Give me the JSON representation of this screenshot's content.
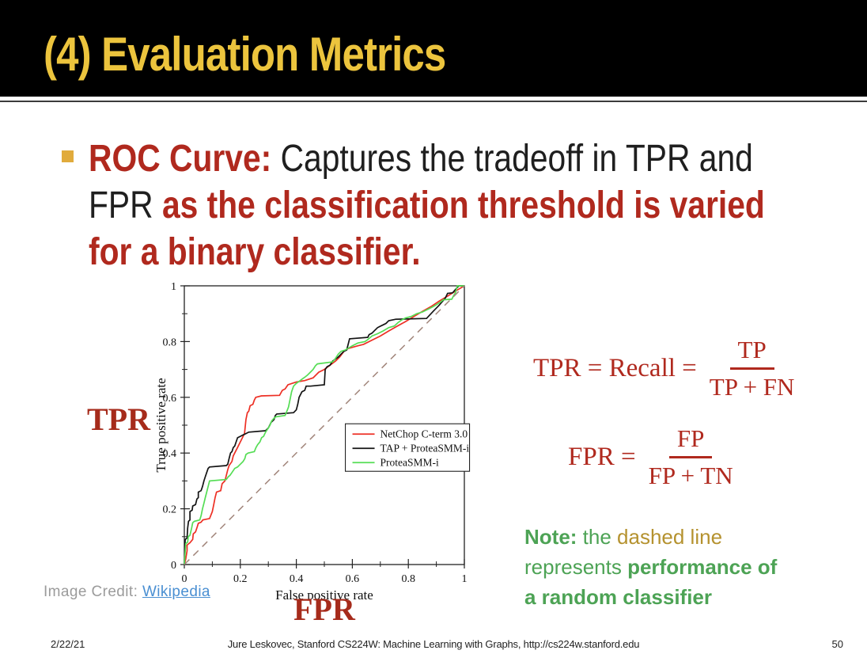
{
  "slide": {
    "title": "(4) Evaluation Metrics",
    "footer": {
      "date": "2/22/21",
      "center": "Jure Leskovec, Stanford CS224W: Machine Learning with Graphs, http://cs224w.stanford.edu",
      "page": "50"
    }
  },
  "colors": {
    "title_gold": "#ECC43D",
    "bullet_gold": "#E1AB3C",
    "text": {
      "red": "#B0291E",
      "black": "#1F1F1F",
      "green": "#4DA355",
      "olive": "#B5922F"
    },
    "serif_red": "#A62B1B",
    "credit_gray": "#9B9B9B",
    "link_blue": "#4A8FD2"
  },
  "bullet": {
    "lines": [
      [
        {
          "t": "ROC Curve: ",
          "c": "red",
          "b": true
        },
        {
          "t": "Captures the tradeoff in TPR and",
          "c": "black",
          "b": false
        }
      ],
      [
        {
          "t": "FPR ",
          "c": "black",
          "b": false
        },
        {
          "t": "as the classification threshold is varied",
          "c": "red",
          "b": true
        }
      ],
      [
        {
          "t": "for a binary classifier.",
          "c": "red",
          "b": true
        }
      ]
    ]
  },
  "labels": {
    "tpr": "TPR",
    "fpr": "FPR"
  },
  "image_credit": {
    "prefix": "Image Credit: ",
    "link": "Wikipedia"
  },
  "formulas": {
    "tpr": {
      "lhs": "TPR = Recall =",
      "numerator": "TP",
      "denominator": "TP + FN"
    },
    "fpr": {
      "lhs": "FPR =",
      "numerator": "FP",
      "denominator": "FP + TN"
    }
  },
  "note": {
    "lines": [
      [
        {
          "t": "Note:",
          "c": "green",
          "b": true
        },
        {
          "t": " the ",
          "c": "green",
          "b": false
        },
        {
          "t": "dashed line",
          "c": "olive",
          "b": false
        }
      ],
      [
        {
          "t": "represents ",
          "c": "green",
          "b": false
        },
        {
          "t": "performance of",
          "c": "green",
          "b": true
        }
      ],
      [
        {
          "t": "a random classifier",
          "c": "green",
          "b": true
        }
      ]
    ]
  },
  "chart_data": {
    "type": "line",
    "title": "",
    "xlabel": "False positive rate",
    "ylabel": "True positive rate",
    "xlim": [
      0,
      1
    ],
    "ylim": [
      0,
      1
    ],
    "xticks": [
      0,
      0.2,
      0.4,
      0.6,
      0.8,
      1
    ],
    "yticks": [
      0,
      0.2,
      0.4,
      0.6,
      0.8,
      1
    ],
    "xtick_labels": [
      "0",
      "0.2",
      "0.4",
      "0.6",
      "0.8",
      "1"
    ],
    "ytick_labels": [
      "0",
      "0.2",
      "0.4",
      "0.6",
      "0.8",
      "1"
    ],
    "minor_tick_step": 0.1,
    "grid": false,
    "legend_position": "inside-right",
    "series": [
      {
        "name": "NetChop C-term 3.0",
        "color": "#ED2F24",
        "dashed": false,
        "in_legend": true,
        "points": [
          [
            0,
            0
          ],
          [
            0.005,
            0.02
          ],
          [
            0.01,
            0.05
          ],
          [
            0.01,
            0.07
          ],
          [
            0.02,
            0.078
          ],
          [
            0.03,
            0.09
          ],
          [
            0.032,
            0.11
          ],
          [
            0.04,
            0.117
          ],
          [
            0.046,
            0.135
          ],
          [
            0.05,
            0.148
          ],
          [
            0.06,
            0.152
          ],
          [
            0.066,
            0.16
          ],
          [
            0.09,
            0.165
          ],
          [
            0.1,
            0.19
          ],
          [
            0.105,
            0.215
          ],
          [
            0.11,
            0.24
          ],
          [
            0.115,
            0.26
          ],
          [
            0.13,
            0.265
          ],
          [
            0.135,
            0.29
          ],
          [
            0.145,
            0.3
          ],
          [
            0.15,
            0.32
          ],
          [
            0.155,
            0.34
          ],
          [
            0.16,
            0.355
          ],
          [
            0.17,
            0.37
          ],
          [
            0.175,
            0.39
          ],
          [
            0.18,
            0.4
          ],
          [
            0.19,
            0.42
          ],
          [
            0.2,
            0.44
          ],
          [
            0.21,
            0.46
          ],
          [
            0.215,
            0.47
          ],
          [
            0.22,
            0.52
          ],
          [
            0.225,
            0.545
          ],
          [
            0.23,
            0.55
          ],
          [
            0.235,
            0.57
          ],
          [
            0.245,
            0.575
          ],
          [
            0.25,
            0.59
          ],
          [
            0.255,
            0.6
          ],
          [
            0.275,
            0.605
          ],
          [
            0.34,
            0.607
          ],
          [
            0.35,
            0.625
          ],
          [
            0.36,
            0.63
          ],
          [
            0.37,
            0.645
          ],
          [
            0.4,
            0.655
          ],
          [
            0.43,
            0.66
          ],
          [
            0.46,
            0.67
          ],
          [
            0.48,
            0.69
          ],
          [
            0.5,
            0.7
          ],
          [
            0.52,
            0.715
          ],
          [
            0.54,
            0.73
          ],
          [
            0.555,
            0.745
          ],
          [
            0.57,
            0.765
          ],
          [
            0.585,
            0.775
          ],
          [
            0.62,
            0.785
          ],
          [
            0.64,
            0.79
          ],
          [
            0.67,
            0.805
          ],
          [
            0.7,
            0.82
          ],
          [
            0.73,
            0.838
          ],
          [
            0.76,
            0.855
          ],
          [
            0.79,
            0.872
          ],
          [
            0.82,
            0.89
          ],
          [
            0.85,
            0.908
          ],
          [
            0.88,
            0.925
          ],
          [
            0.91,
            0.945
          ],
          [
            0.94,
            0.963
          ],
          [
            0.97,
            0.982
          ],
          [
            1,
            1
          ]
        ]
      },
      {
        "name": "TAP + ProteaSMM-i",
        "color": "#141414",
        "dashed": false,
        "in_legend": true,
        "points": [
          [
            0,
            0
          ],
          [
            0.003,
            0.09
          ],
          [
            0.01,
            0.095
          ],
          [
            0.012,
            0.13
          ],
          [
            0.015,
            0.155
          ],
          [
            0.02,
            0.16
          ],
          [
            0.02,
            0.19
          ],
          [
            0.028,
            0.195
          ],
          [
            0.03,
            0.21
          ],
          [
            0.04,
            0.215
          ],
          [
            0.045,
            0.235
          ],
          [
            0.05,
            0.24
          ],
          [
            0.05,
            0.26
          ],
          [
            0.06,
            0.265
          ],
          [
            0.065,
            0.28
          ],
          [
            0.07,
            0.3
          ],
          [
            0.075,
            0.315
          ],
          [
            0.08,
            0.33
          ],
          [
            0.085,
            0.345
          ],
          [
            0.09,
            0.35
          ],
          [
            0.15,
            0.355
          ],
          [
            0.155,
            0.36
          ],
          [
            0.16,
            0.38
          ],
          [
            0.165,
            0.4
          ],
          [
            0.17,
            0.405
          ],
          [
            0.175,
            0.42
          ],
          [
            0.18,
            0.425
          ],
          [
            0.185,
            0.44
          ],
          [
            0.19,
            0.455
          ],
          [
            0.2,
            0.46
          ],
          [
            0.21,
            0.465
          ],
          [
            0.22,
            0.47
          ],
          [
            0.23,
            0.475
          ],
          [
            0.29,
            0.48
          ],
          [
            0.3,
            0.49
          ],
          [
            0.305,
            0.5
          ],
          [
            0.31,
            0.51
          ],
          [
            0.32,
            0.52
          ],
          [
            0.325,
            0.535
          ],
          [
            0.33,
            0.54
          ],
          [
            0.39,
            0.545
          ],
          [
            0.4,
            0.555
          ],
          [
            0.405,
            0.575
          ],
          [
            0.41,
            0.6
          ],
          [
            0.415,
            0.61
          ],
          [
            0.42,
            0.62
          ],
          [
            0.43,
            0.625
          ],
          [
            0.435,
            0.64
          ],
          [
            0.45,
            0.64
          ],
          [
            0.5,
            0.645
          ],
          [
            0.503,
            0.7
          ],
          [
            0.51,
            0.71
          ],
          [
            0.52,
            0.715
          ],
          [
            0.53,
            0.73
          ],
          [
            0.55,
            0.745
          ],
          [
            0.56,
            0.755
          ],
          [
            0.57,
            0.765
          ],
          [
            0.58,
            0.77
          ],
          [
            0.59,
            0.81
          ],
          [
            0.655,
            0.815
          ],
          [
            0.66,
            0.825
          ],
          [
            0.67,
            0.83
          ],
          [
            0.68,
            0.84
          ],
          [
            0.69,
            0.85
          ],
          [
            0.7,
            0.855
          ],
          [
            0.71,
            0.86
          ],
          [
            0.72,
            0.865
          ],
          [
            0.73,
            0.875
          ],
          [
            0.755,
            0.88
          ],
          [
            0.865,
            0.883
          ],
          [
            0.89,
            0.91
          ],
          [
            0.91,
            0.93
          ],
          [
            0.932,
            0.956
          ],
          [
            0.94,
            0.973
          ],
          [
            0.958,
            0.975
          ],
          [
            0.98,
            1
          ],
          [
            1,
            1
          ]
        ]
      },
      {
        "name": "ProteaSMM-i",
        "color": "#55DD55",
        "dashed": false,
        "in_legend": true,
        "points": [
          [
            0,
            0
          ],
          [
            0.005,
            0.075
          ],
          [
            0.012,
            0.08
          ],
          [
            0.014,
            0.1
          ],
          [
            0.02,
            0.105
          ],
          [
            0.026,
            0.13
          ],
          [
            0.03,
            0.15
          ],
          [
            0.036,
            0.155
          ],
          [
            0.055,
            0.16
          ],
          [
            0.06,
            0.175
          ],
          [
            0.065,
            0.2
          ],
          [
            0.07,
            0.22
          ],
          [
            0.075,
            0.24
          ],
          [
            0.08,
            0.26
          ],
          [
            0.085,
            0.28
          ],
          [
            0.09,
            0.3
          ],
          [
            0.15,
            0.305
          ],
          [
            0.157,
            0.315
          ],
          [
            0.163,
            0.32
          ],
          [
            0.17,
            0.33
          ],
          [
            0.18,
            0.345
          ],
          [
            0.19,
            0.35
          ],
          [
            0.2,
            0.36
          ],
          [
            0.21,
            0.37
          ],
          [
            0.216,
            0.38
          ],
          [
            0.22,
            0.395
          ],
          [
            0.228,
            0.4
          ],
          [
            0.25,
            0.405
          ],
          [
            0.256,
            0.42
          ],
          [
            0.262,
            0.43
          ],
          [
            0.27,
            0.44
          ],
          [
            0.276,
            0.455
          ],
          [
            0.283,
            0.46
          ],
          [
            0.29,
            0.475
          ],
          [
            0.3,
            0.49
          ],
          [
            0.306,
            0.5
          ],
          [
            0.312,
            0.515
          ],
          [
            0.32,
            0.525
          ],
          [
            0.327,
            0.53
          ],
          [
            0.36,
            0.535
          ],
          [
            0.366,
            0.55
          ],
          [
            0.372,
            0.565
          ],
          [
            0.377,
            0.59
          ],
          [
            0.383,
            0.62
          ],
          [
            0.39,
            0.64
          ],
          [
            0.4,
            0.65
          ],
          [
            0.41,
            0.657
          ],
          [
            0.42,
            0.665
          ],
          [
            0.43,
            0.672
          ],
          [
            0.44,
            0.68
          ],
          [
            0.45,
            0.69
          ],
          [
            0.46,
            0.7
          ],
          [
            0.468,
            0.713
          ],
          [
            0.475,
            0.72
          ],
          [
            0.49,
            0.722
          ],
          [
            0.53,
            0.727
          ],
          [
            0.54,
            0.74
          ],
          [
            0.55,
            0.755
          ],
          [
            0.56,
            0.765
          ],
          [
            0.575,
            0.77
          ],
          [
            0.6,
            0.785
          ],
          [
            0.62,
            0.795
          ],
          [
            0.645,
            0.8
          ],
          [
            0.655,
            0.807
          ],
          [
            0.67,
            0.82
          ],
          [
            0.69,
            0.828
          ],
          [
            0.71,
            0.838
          ],
          [
            0.73,
            0.85
          ],
          [
            0.75,
            0.856
          ],
          [
            0.763,
            0.868
          ],
          [
            0.775,
            0.877
          ],
          [
            0.79,
            0.885
          ],
          [
            0.81,
            0.89
          ],
          [
            0.83,
            0.9
          ],
          [
            0.85,
            0.906
          ],
          [
            0.87,
            0.916
          ],
          [
            0.89,
            0.926
          ],
          [
            0.9,
            0.932
          ],
          [
            0.915,
            0.942
          ],
          [
            0.925,
            0.95
          ],
          [
            0.955,
            0.952
          ],
          [
            0.962,
            0.965
          ],
          [
            0.968,
            0.975
          ],
          [
            0.975,
            1
          ],
          [
            1,
            1
          ]
        ]
      },
      {
        "name": "random classifier baseline",
        "color": "#A1857A",
        "dashed": true,
        "in_legend": false,
        "points": [
          [
            0,
            0
          ],
          [
            1,
            1
          ]
        ]
      }
    ]
  }
}
